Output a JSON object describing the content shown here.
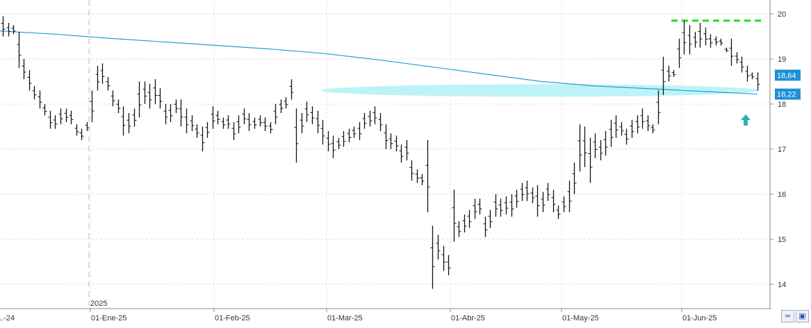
{
  "chart_data": {
    "type": "ohlc",
    "title": "",
    "xlabel": "",
    "ylabel": "",
    "ylim": [
      13.5,
      20.2
    ],
    "y_ticks": [
      "14",
      "15",
      "16",
      "17",
      "18",
      "19",
      "20"
    ],
    "x_ticks": [
      "...-24",
      "01-Ene-25",
      "01-Feb-25",
      "01-Mar-25",
      "01-Abr-25",
      "01-May-25",
      "01-Jun-25"
    ],
    "year_marker": "2025",
    "grid": true,
    "series": [
      {
        "type": "ohlc",
        "bars": [
          {
            "h": 19.95,
            "l": 19.5
          },
          {
            "h": 19.8,
            "l": 19.5
          },
          {
            "h": 19.75,
            "l": 19.55
          },
          {
            "h": 19.6,
            "l": 18.8
          },
          {
            "h": 19.0,
            "l": 18.55
          },
          {
            "h": 18.75,
            "l": 18.3
          },
          {
            "h": 18.4,
            "l": 18.1
          },
          {
            "h": 18.3,
            "l": 17.9
          },
          {
            "h": 18.0,
            "l": 17.75
          },
          {
            "h": 17.85,
            "l": 17.45
          },
          {
            "h": 17.75,
            "l": 17.45
          },
          {
            "h": 17.9,
            "l": 17.55
          },
          {
            "h": 17.9,
            "l": 17.6
          },
          {
            "h": 17.85,
            "l": 17.55
          },
          {
            "h": 17.55,
            "l": 17.3
          },
          {
            "h": 17.45,
            "l": 17.2
          },
          {
            "h": 17.6,
            "l": 17.4
          },
          {
            "h": 18.3,
            "l": 17.6
          },
          {
            "h": 18.85,
            "l": 18.3
          },
          {
            "h": 18.9,
            "l": 18.45
          },
          {
            "h": 18.6,
            "l": 18.3
          },
          {
            "h": 18.3,
            "l": 17.95
          },
          {
            "h": 18.1,
            "l": 17.8
          },
          {
            "h": 17.95,
            "l": 17.3
          },
          {
            "h": 17.8,
            "l": 17.35
          },
          {
            "h": 17.9,
            "l": 17.5
          },
          {
            "h": 18.5,
            "l": 17.7
          },
          {
            "h": 18.5,
            "l": 18.0
          },
          {
            "h": 18.45,
            "l": 17.9
          },
          {
            "h": 18.55,
            "l": 18.0
          },
          {
            "h": 18.35,
            "l": 17.9
          },
          {
            "h": 18.0,
            "l": 17.55
          },
          {
            "h": 18.0,
            "l": 17.6
          },
          {
            "h": 18.1,
            "l": 17.8
          },
          {
            "h": 18.1,
            "l": 17.5
          },
          {
            "h": 17.9,
            "l": 17.35
          },
          {
            "h": 17.75,
            "l": 17.4
          },
          {
            "h": 17.55,
            "l": 17.25
          },
          {
            "h": 17.5,
            "l": 16.95
          },
          {
            "h": 17.6,
            "l": 17.25
          },
          {
            "h": 17.95,
            "l": 17.45
          },
          {
            "h": 17.85,
            "l": 17.55
          },
          {
            "h": 17.7,
            "l": 17.45
          },
          {
            "h": 17.75,
            "l": 17.45
          },
          {
            "h": 17.6,
            "l": 17.2
          },
          {
            "h": 17.75,
            "l": 17.35
          },
          {
            "h": 17.9,
            "l": 17.55
          },
          {
            "h": 17.8,
            "l": 17.4
          },
          {
            "h": 17.7,
            "l": 17.45
          },
          {
            "h": 17.75,
            "l": 17.5
          },
          {
            "h": 17.7,
            "l": 17.4
          },
          {
            "h": 17.6,
            "l": 17.35
          },
          {
            "h": 18.0,
            "l": 17.55
          },
          {
            "h": 18.1,
            "l": 17.8
          },
          {
            "h": 18.15,
            "l": 17.9
          },
          {
            "h": 18.55,
            "l": 18.1
          },
          {
            "h": 17.9,
            "l": 16.7
          },
          {
            "h": 17.8,
            "l": 17.35
          },
          {
            "h": 18.05,
            "l": 17.6
          },
          {
            "h": 17.95,
            "l": 17.55
          },
          {
            "h": 17.85,
            "l": 17.35
          },
          {
            "h": 17.65,
            "l": 17.1
          },
          {
            "h": 17.4,
            "l": 16.95
          },
          {
            "h": 17.3,
            "l": 16.8
          },
          {
            "h": 17.25,
            "l": 17.0
          },
          {
            "h": 17.4,
            "l": 17.05
          },
          {
            "h": 17.45,
            "l": 17.15
          },
          {
            "h": 17.5,
            "l": 17.25
          },
          {
            "h": 17.6,
            "l": 17.2
          },
          {
            "h": 17.8,
            "l": 17.45
          },
          {
            "h": 17.85,
            "l": 17.5
          },
          {
            "h": 17.95,
            "l": 17.55
          },
          {
            "h": 17.8,
            "l": 17.4
          },
          {
            "h": 17.55,
            "l": 17.0
          },
          {
            "h": 17.35,
            "l": 17.0
          },
          {
            "h": 17.3,
            "l": 16.95
          },
          {
            "h": 17.1,
            "l": 16.7
          },
          {
            "h": 17.2,
            "l": 16.75
          },
          {
            "h": 16.75,
            "l": 16.3
          },
          {
            "h": 16.55,
            "l": 16.25
          },
          {
            "h": 16.45,
            "l": 16.2
          },
          {
            "h": 17.2,
            "l": 15.6
          },
          {
            "h": 15.3,
            "l": 13.9
          },
          {
            "h": 15.1,
            "l": 14.55
          },
          {
            "h": 14.85,
            "l": 14.3
          },
          {
            "h": 14.65,
            "l": 14.2
          },
          {
            "h": 16.1,
            "l": 14.95
          },
          {
            "h": 15.4,
            "l": 15.05
          },
          {
            "h": 15.55,
            "l": 15.15
          },
          {
            "h": 15.65,
            "l": 15.25
          },
          {
            "h": 15.9,
            "l": 15.45
          },
          {
            "h": 15.9,
            "l": 15.55
          },
          {
            "h": 15.5,
            "l": 15.05
          },
          {
            "h": 15.65,
            "l": 15.25
          },
          {
            "h": 16.0,
            "l": 15.5
          },
          {
            "h": 15.9,
            "l": 15.5
          },
          {
            "h": 15.95,
            "l": 15.55
          },
          {
            "h": 16.0,
            "l": 15.5
          },
          {
            "h": 16.1,
            "l": 15.7
          },
          {
            "h": 16.25,
            "l": 15.85
          },
          {
            "h": 16.3,
            "l": 15.85
          },
          {
            "h": 16.15,
            "l": 15.8
          },
          {
            "h": 16.2,
            "l": 15.5
          },
          {
            "h": 16.05,
            "l": 15.6
          },
          {
            "h": 16.25,
            "l": 15.85
          },
          {
            "h": 16.1,
            "l": 15.6
          },
          {
            "h": 15.75,
            "l": 15.45
          },
          {
            "h": 15.95,
            "l": 15.6
          },
          {
            "h": 16.3,
            "l": 15.6
          },
          {
            "h": 16.7,
            "l": 16.0
          },
          {
            "h": 17.55,
            "l": 16.5
          },
          {
            "h": 17.5,
            "l": 16.6
          },
          {
            "h": 17.25,
            "l": 16.25
          },
          {
            "h": 17.35,
            "l": 16.8
          },
          {
            "h": 17.2,
            "l": 16.75
          },
          {
            "h": 17.4,
            "l": 16.85
          },
          {
            "h": 17.65,
            "l": 17.05
          },
          {
            "h": 17.75,
            "l": 17.25
          },
          {
            "h": 17.6,
            "l": 17.3
          },
          {
            "h": 17.45,
            "l": 17.1
          },
          {
            "h": 17.65,
            "l": 17.25
          },
          {
            "h": 17.75,
            "l": 17.35
          },
          {
            "h": 17.9,
            "l": 17.45
          },
          {
            "h": 17.75,
            "l": 17.4
          },
          {
            "h": 17.55,
            "l": 17.35
          },
          {
            "h": 18.3,
            "l": 17.55
          },
          {
            "h": 19.05,
            "l": 18.2
          },
          {
            "h": 18.85,
            "l": 18.5
          },
          {
            "h": 18.75,
            "l": 18.6
          },
          {
            "h": 19.45,
            "l": 18.8
          },
          {
            "h": 19.85,
            "l": 19.1
          },
          {
            "h": 19.75,
            "l": 19.1
          },
          {
            "h": 19.6,
            "l": 19.25
          },
          {
            "h": 19.8,
            "l": 19.25
          },
          {
            "h": 19.7,
            "l": 19.3
          },
          {
            "h": 19.55,
            "l": 19.25
          },
          {
            "h": 19.5,
            "l": 19.3
          },
          {
            "h": 19.45,
            "l": 19.3
          },
          {
            "h": 19.25,
            "l": 19.15
          },
          {
            "h": 19.45,
            "l": 18.85
          },
          {
            "h": 19.15,
            "l": 18.9
          },
          {
            "h": 19.05,
            "l": 18.7
          },
          {
            "h": 18.85,
            "l": 18.5
          },
          {
            "h": 18.7,
            "l": 18.55
          },
          {
            "h": 18.7,
            "l": 18.3
          }
        ]
      },
      {
        "type": "line",
        "color": "#1f9fd0",
        "values": [
          19.62,
          19.55,
          19.46,
          19.38,
          19.3,
          19.22,
          19.12,
          18.98,
          18.82,
          18.66,
          18.5,
          18.4,
          18.34,
          18.28,
          18.22
        ]
      }
    ],
    "annotations": {
      "resistance_line": {
        "value": 19.85,
        "color": "#22dd22",
        "style": "dashed"
      },
      "support_zone": {
        "center": 18.3,
        "color": "#bdf3f7"
      },
      "arrow": {
        "direction": "up",
        "color": "#2bb3b3"
      },
      "price_tags": [
        {
          "label": "18,64",
          "value": 18.64,
          "color": "#1f8fd8"
        },
        {
          "label": "18,22",
          "value": 18.22,
          "color": "#1f8fd8"
        }
      ]
    }
  },
  "toolbar": {
    "zoom_icon": "zoom-icon",
    "save_icon": "save-icon"
  }
}
